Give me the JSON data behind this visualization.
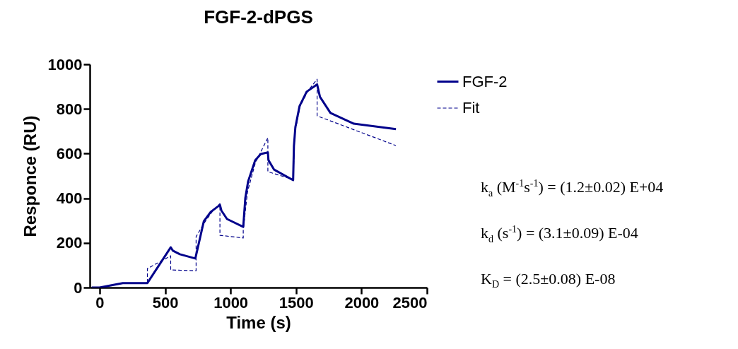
{
  "chart_data": {
    "type": "line",
    "title": "FGF-2-dPGS",
    "xlabel": "Time (s)",
    "ylabel": "Responce (RU)",
    "xlim": [
      -75,
      2500
    ],
    "xticks": [
      0,
      500,
      1000,
      1500,
      2000,
      2500
    ],
    "ylim": [
      0,
      1000
    ],
    "yticks": [
      0,
      200,
      400,
      600,
      800,
      1000
    ],
    "grid": false,
    "legend": "top right",
    "marker": "none",
    "series": [
      {
        "name": "FGF-2",
        "color": "#00008b",
        "line_style": "solid",
        "x": [
          -60,
          0,
          177,
          365,
          543,
          560,
          613,
          731,
          742,
          796,
          849,
          919,
          930,
          973,
          1097,
          1113,
          1134,
          1188,
          1231,
          1285,
          1290,
          1333,
          1478,
          1484,
          1495,
          1527,
          1581,
          1661,
          1683,
          1763,
          1941,
          2263
        ],
        "values": [
          0,
          0,
          20,
          20,
          180,
          165,
          149,
          130,
          158,
          297,
          339,
          370,
          345,
          307,
          272,
          402,
          475,
          570,
          598,
          605,
          570,
          528,
          481,
          633,
          718,
          813,
          877,
          910,
          854,
          782,
          734,
          710
        ]
      },
      {
        "name": "Fit",
        "color": "#00008b",
        "line_style": "dashed",
        "x": [
          -60,
          0,
          177,
          365,
          365,
          543,
          543,
          737,
          737,
          800,
          860,
          919,
          919,
          1097,
          1097,
          1130,
          1190,
          1285,
          1285,
          1478,
          1478,
          1490,
          1530,
          1590,
          1661,
          1661,
          2263
        ],
        "values": [
          0,
          0,
          20,
          20,
          85,
          142,
          79,
          75,
          228,
          290,
          340,
          376,
          234,
          222,
          260,
          430,
          560,
          671,
          519,
          484,
          484,
          690,
          810,
          880,
          933,
          769,
          636
        ]
      }
    ],
    "annotations": [
      "k$_{a}$ (M$^{-1}$s$^{-1}$) = (1.2±0.02) E+04",
      "k$_{d}$ (s$^{-1}$) = (3.1±0.09) E-04",
      "K$_{D}$ = (2.5±0.08) E-08"
    ]
  }
}
